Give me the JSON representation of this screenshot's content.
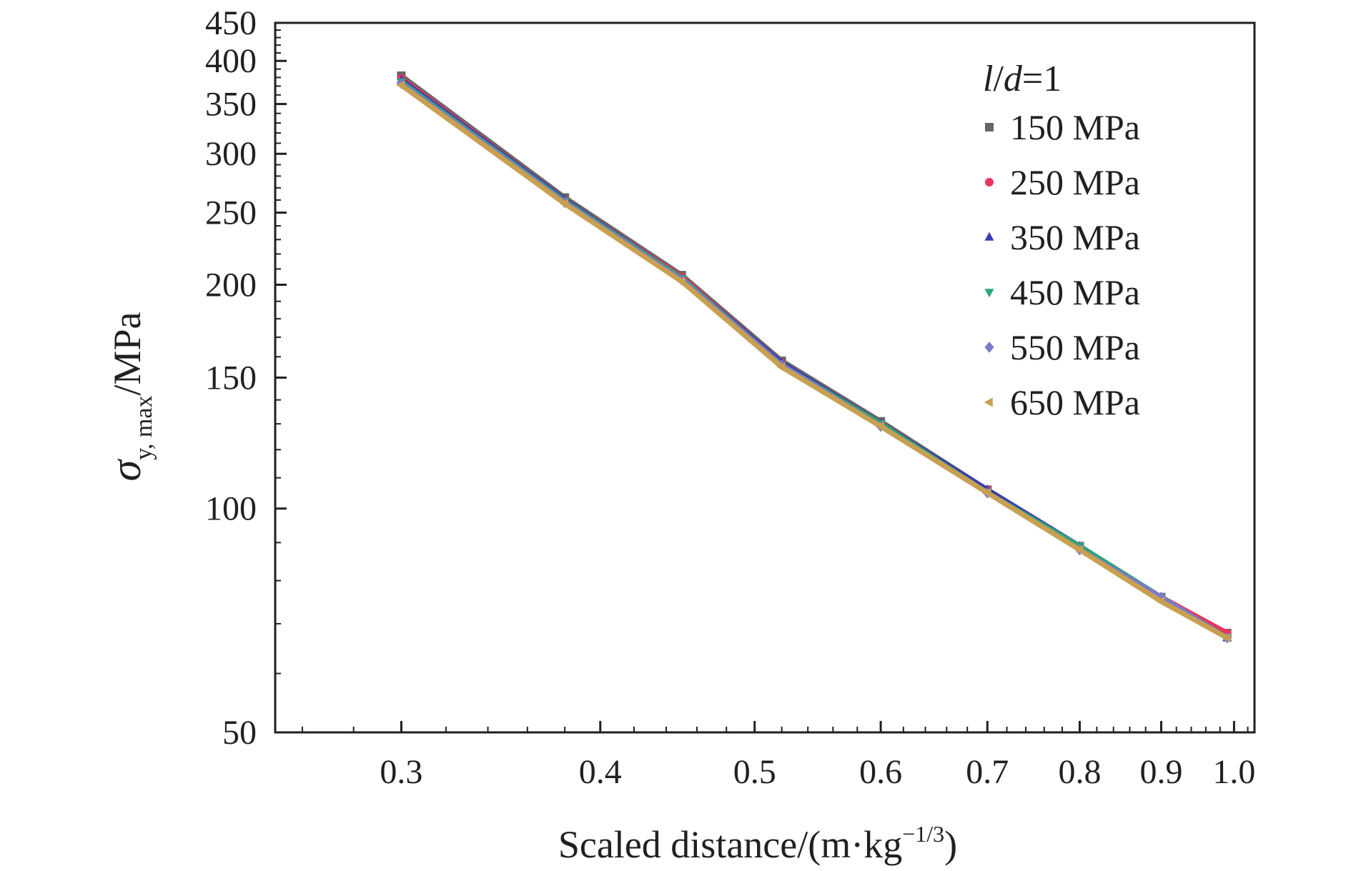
{
  "chart_data": {
    "type": "line",
    "x_scale": "log",
    "y_scale": "log",
    "xlim": [
      0.25,
      1.03
    ],
    "ylim": [
      50,
      450
    ],
    "x_ticks": [
      0.3,
      0.4,
      0.5,
      0.6,
      0.7,
      0.8,
      0.9,
      1.0
    ],
    "x_tick_labels": [
      "0.3",
      "0.4",
      "0.5",
      "0.6",
      "0.7",
      "0.8",
      "0.9",
      "1.0"
    ],
    "y_ticks": [
      50,
      100,
      150,
      200,
      250,
      300,
      350,
      400,
      450
    ],
    "y_tick_labels": [
      "50",
      "100",
      "150",
      "200",
      "250",
      "300",
      "350",
      "400",
      "450"
    ],
    "xlabel": {
      "main": "Scaled distance/(m·kg",
      "sup": "−1/3",
      "close": ")"
    },
    "ylabel": {
      "symbol": "σ",
      "sub": "y, max",
      "unit": "/MPa"
    },
    "legend": {
      "title_l": "l",
      "title_slash": "/",
      "title_d": "d",
      "title_rest": "=1",
      "placement": "top-right"
    },
    "grid": false,
    "series": [
      {
        "name": "150 MPa",
        "color": "#666666",
        "marker": "square",
        "x": [
          0.3,
          0.38,
          0.45,
          0.52,
          0.6,
          0.7,
          0.8,
          0.9,
          0.99
        ],
        "y": [
          382,
          262,
          206,
          158,
          131,
          106,
          89,
          76,
          68
        ]
      },
      {
        "name": "250 MPa",
        "color": "#e8365d",
        "marker": "circle",
        "x": [
          0.3,
          0.38,
          0.45,
          0.52,
          0.6,
          0.7,
          0.8,
          0.9,
          0.99
        ],
        "y": [
          379,
          260,
          205,
          157,
          130,
          106,
          89,
          76,
          68
        ]
      },
      {
        "name": "350 MPa",
        "color": "#3b3bb3",
        "marker": "triangle-up",
        "x": [
          0.3,
          0.38,
          0.45,
          0.52,
          0.6,
          0.7,
          0.8,
          0.9,
          0.99
        ],
        "y": [
          377,
          260,
          204,
          157,
          130,
          106,
          89,
          76,
          67
        ]
      },
      {
        "name": "450 MPa",
        "color": "#2da57b",
        "marker": "triangle-down",
        "x": [
          0.3,
          0.38,
          0.45,
          0.52,
          0.6,
          0.7,
          0.8,
          0.9,
          0.99
        ],
        "y": [
          375,
          259,
          204,
          156,
          130,
          105,
          89,
          76,
          67
        ]
      },
      {
        "name": "550 MPa",
        "color": "#7b7bc8",
        "marker": "diamond",
        "x": [
          0.3,
          0.38,
          0.45,
          0.52,
          0.6,
          0.7,
          0.8,
          0.9,
          0.99
        ],
        "y": [
          373,
          258,
          203,
          156,
          129,
          105,
          88,
          76,
          67
        ]
      },
      {
        "name": "650 MPa",
        "color": "#c8a050",
        "marker": "triangle-left",
        "x": [
          0.3,
          0.38,
          0.45,
          0.52,
          0.6,
          0.7,
          0.8,
          0.9,
          0.99
        ],
        "y": [
          371,
          257,
          202,
          155,
          129,
          105,
          88,
          75,
          67
        ]
      }
    ]
  }
}
